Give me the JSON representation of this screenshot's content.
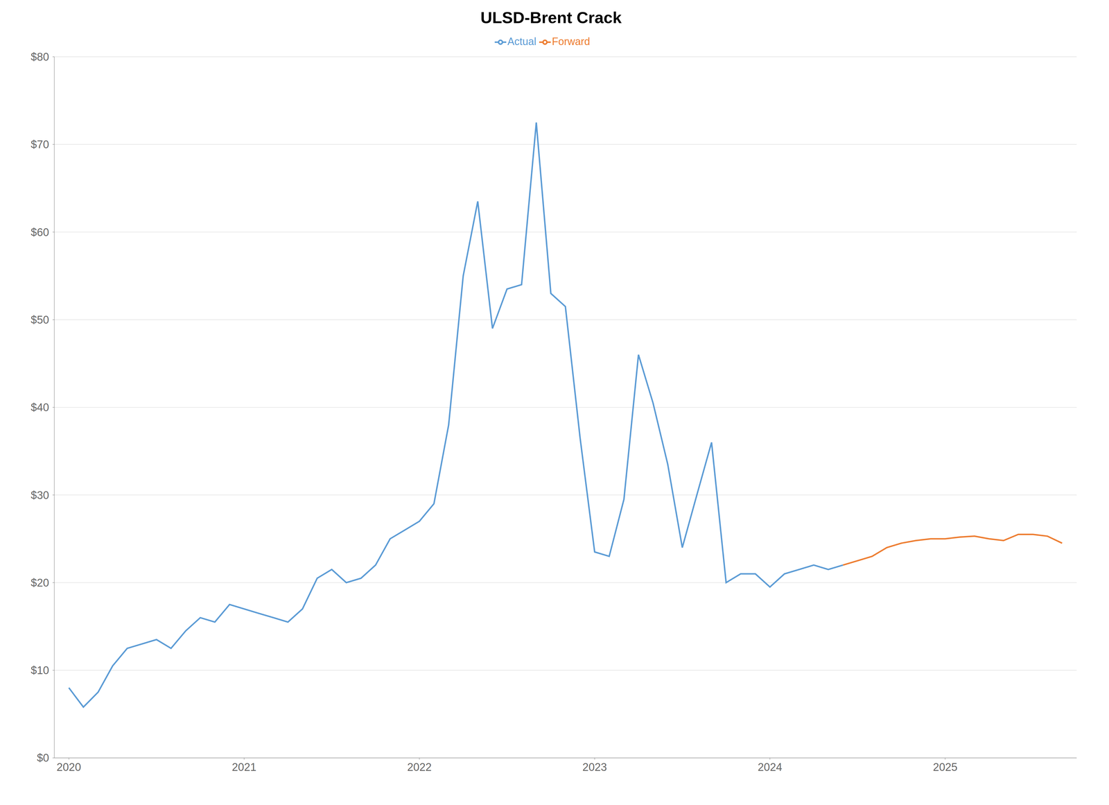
{
  "chart_data": {
    "type": "line",
    "title": "ULSD-Brent Crack",
    "xlim": [
      2019.917,
      2025.75
    ],
    "xticks": [
      2020,
      2021,
      2022,
      2023,
      2024,
      2025
    ],
    "ylim": [
      0,
      80
    ],
    "yticks": [
      {
        "value": 0,
        "label": "$0"
      },
      {
        "value": 10,
        "label": "$10"
      },
      {
        "value": 20,
        "label": "$20"
      },
      {
        "value": 30,
        "label": "$30"
      },
      {
        "value": 40,
        "label": "$40"
      },
      {
        "value": 50,
        "label": "$50"
      },
      {
        "value": 60,
        "label": "$60"
      },
      {
        "value": 70,
        "label": "$70"
      },
      {
        "value": 80,
        "label": "$80"
      }
    ],
    "grid": true,
    "legend": "top",
    "series": [
      {
        "name": "Actual",
        "color": "#5b9bd5",
        "x": [
          2020.0,
          2020.083,
          2020.167,
          2020.25,
          2020.333,
          2020.417,
          2020.5,
          2020.583,
          2020.667,
          2020.75,
          2020.833,
          2020.917,
          2021.0,
          2021.083,
          2021.167,
          2021.25,
          2021.333,
          2021.417,
          2021.5,
          2021.583,
          2021.667,
          2021.75,
          2021.833,
          2021.917,
          2022.0,
          2022.083,
          2022.167,
          2022.25,
          2022.333,
          2022.417,
          2022.5,
          2022.583,
          2022.667,
          2022.75,
          2022.833,
          2022.917,
          2023.0,
          2023.083,
          2023.167,
          2023.25,
          2023.333,
          2023.417,
          2023.5,
          2023.583,
          2023.667,
          2023.75,
          2023.833,
          2023.917,
          2024.0,
          2024.083,
          2024.167,
          2024.25,
          2024.333,
          2024.417
        ],
        "values": [
          8.0,
          5.8,
          7.5,
          10.5,
          12.5,
          13.0,
          13.5,
          12.5,
          14.5,
          16.0,
          15.5,
          17.5,
          17.0,
          16.5,
          16.0,
          15.5,
          17.0,
          20.5,
          21.5,
          20.0,
          20.5,
          22.0,
          25.0,
          26.0,
          27.0,
          29.0,
          38.0,
          55.0,
          63.5,
          49.0,
          53.5,
          54.0,
          72.5,
          53.0,
          51.5,
          36.5,
          23.5,
          23.0,
          29.5,
          46.0,
          40.5,
          33.5,
          24.0,
          30.0,
          36.0,
          20.0,
          21.0,
          21.0,
          19.5,
          21.0,
          21.5,
          22.0,
          21.5,
          22.0
        ]
      },
      {
        "name": "Forward",
        "color": "#ed7d31",
        "x": [
          2024.417,
          2024.5,
          2024.583,
          2024.667,
          2024.75,
          2024.833,
          2024.917,
          2025.0,
          2025.083,
          2025.167,
          2025.25,
          2025.333,
          2025.417,
          2025.5,
          2025.583,
          2025.667
        ],
        "values": [
          22.0,
          22.5,
          23.0,
          24.0,
          24.5,
          24.8,
          25.0,
          25.0,
          25.2,
          25.3,
          25.0,
          24.8,
          25.5,
          25.5,
          25.3,
          24.5
        ]
      }
    ]
  }
}
